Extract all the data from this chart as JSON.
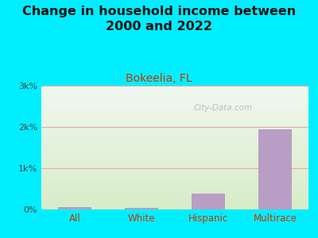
{
  "title": "Change in household income between\n2000 and 2022",
  "subtitle": "Bokeelia, FL",
  "categories": [
    "All",
    "White",
    "Hispanic",
    "Multirace"
  ],
  "values": [
    55,
    45,
    380,
    1950
  ],
  "bar_color": "#b89ec4",
  "title_fontsize": 11.5,
  "subtitle_fontsize": 10,
  "subtitle_color": "#cc3300",
  "xlabel_color": "#cc3300",
  "background_outer": "#00eeff",
  "background_plot_top": "#f0f8f0",
  "background_plot_bottom": "#d8ecc8",
  "ylim": [
    0,
    3000
  ],
  "yticks": [
    0,
    1000,
    2000,
    3000
  ],
  "ytick_labels": [
    "0%",
    "1k%",
    "2k%",
    "3k%"
  ],
  "grid_color": "#e8aaaa",
  "watermark": "City-Data.com",
  "title_color": "#111111"
}
